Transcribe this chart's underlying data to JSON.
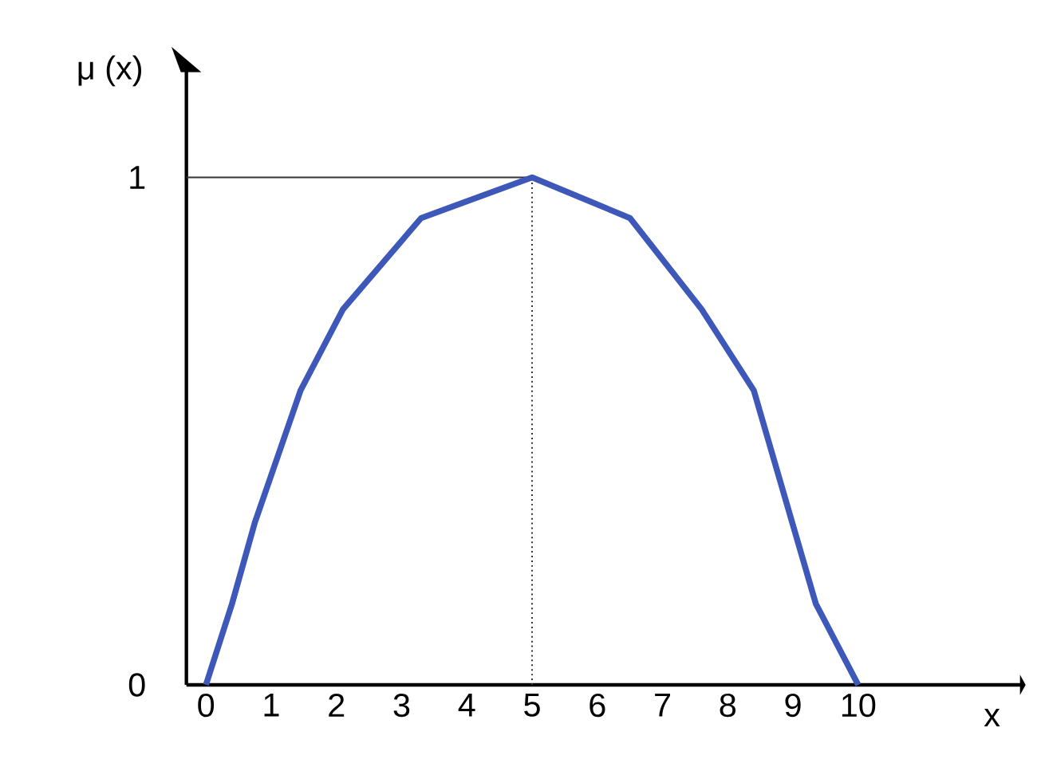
{
  "chart_data": {
    "type": "line",
    "xlabel": "x",
    "ylabel": "μ (x)",
    "x": [
      0,
      0.4,
      0.75,
      1.45,
      2.1,
      3.3,
      5,
      6.5,
      7.6,
      8.4,
      9.35,
      10
    ],
    "values": [
      0,
      0.16,
      0.32,
      0.58,
      0.74,
      0.92,
      1,
      0.92,
      0.74,
      0.58,
      0.16,
      0
    ],
    "color": "#3d58b8",
    "xlim": [
      -0.3,
      12.5
    ],
    "ylim": [
      0,
      1.21
    ],
    "xticks": [
      0,
      1,
      2,
      3,
      4,
      5,
      6,
      7,
      8,
      9,
      10
    ],
    "yticks": [
      0,
      1
    ],
    "ref_lines": [
      {
        "axis": "y",
        "value": 1,
        "color": "#333333",
        "line_style": "solid"
      },
      {
        "axis": "x",
        "value": 5,
        "color": "#333333",
        "line_style": "dotted"
      }
    ],
    "grid": false,
    "legend": false,
    "marker": "none",
    "line_style": "solid"
  }
}
